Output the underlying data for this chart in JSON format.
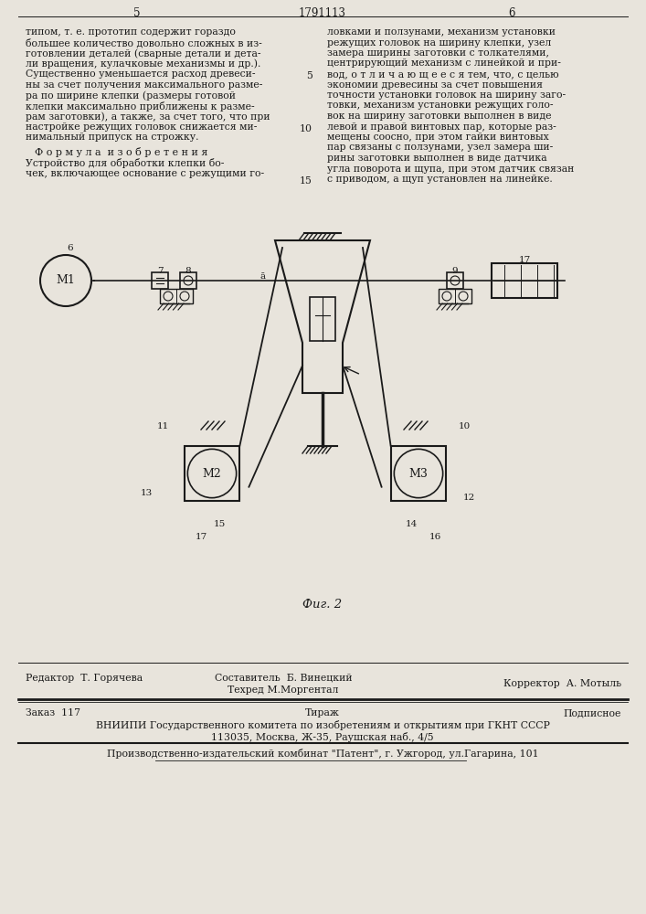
{
  "bg_color": "#e8e4dc",
  "page_header": {
    "left_num": "5",
    "center_num": "1791113",
    "right_num": "6"
  },
  "left_col_text": [
    "типом, т. е. прототип содержит гораздо",
    "большее количество довольно сложных в из-",
    "готовлении деталей (сварные детали и дета-",
    "ли вращения, кулачковые механизмы и др.).",
    "Существенно уменьшается расход древеси-",
    "ны за счет получения максимального разме-",
    "ра по ширине клепки (размеры готовой",
    "клепки максимально приближены к разме-",
    "рам заготовки), а также, за счет того, что при",
    "настройке режущих головок снижается ми-",
    "нимальный припуск на строжку."
  ],
  "formula_title": "Ф о р м у л а  и з о б р е т е н и я",
  "formula_text": [
    "Устройство для обработки клепки бо-",
    "чек, включающее основание с режущими го-"
  ],
  "right_col_text": [
    "ловками и ползунами, механизм установки",
    "режущих головок на ширину клепки, узел",
    "замера ширины заготовки с толкателями,",
    "центрирующий механизм с линейкой и при-",
    "вод, о т л и ч а ю щ е е с я тем, что, с целью",
    "экономии древесины за счет повышения",
    "точности установки головок на ширину заго-",
    "товки, механизм установки режущих голо-",
    "вок на ширину заготовки выполнен в виде",
    "левой и правой винтовых пар, которые раз-",
    "мещены соосно, при этом гайки винтовых",
    "пар связаны с ползунами, узел замера ши-",
    "рины заготовки выполнен в виде датчика",
    "угла поворота и щупа, при этом датчик связан",
    "с приводом, а щуп установлен на линейке."
  ],
  "fig_caption": "Фиг. 2",
  "footer_line1_left": "Редактор  Т. Горячева",
  "footer_line1_center1": "Составитель  Б. Винецкий",
  "footer_line1_center2": "Техред М.Моргентал",
  "footer_line1_right": "Корректор  А. Мотыль",
  "footer_line2_left": "Заказ  117",
  "footer_line2_center": "Тираж",
  "footer_line2_right": "Подписное",
  "footer_line3": "ВНИИПИ Государственного комитета по изобретениям и открытиям при ГКНТ СССР",
  "footer_line4": "113035, Москва, Ж-35, Раушская наб., 4/5",
  "footer_line5": "Производственно-издательский комбинат \"Патент\", г. Ужгород, ул.Гагарина, 101",
  "text_color": "#1a1a1a",
  "line_color": "#1a1a1a"
}
